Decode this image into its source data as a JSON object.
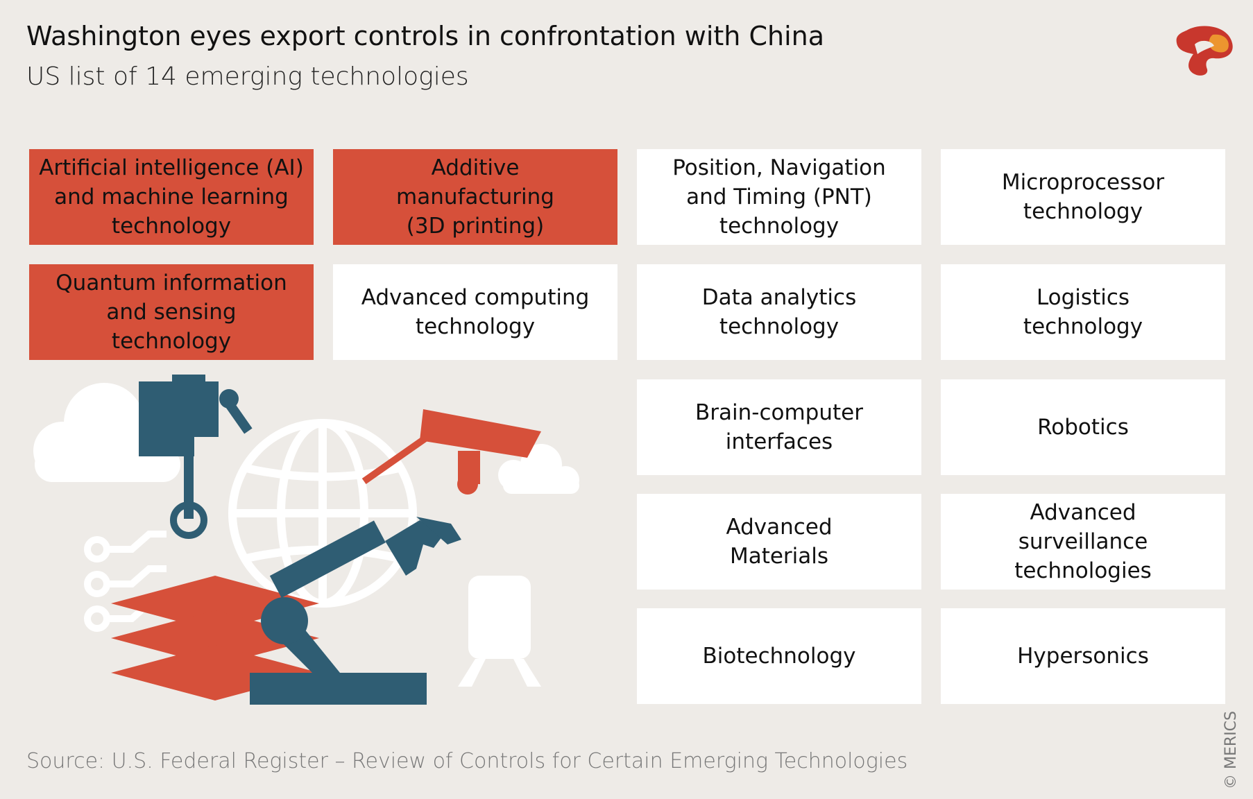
{
  "header": {
    "title": "Washington eyes export controls in confrontation with China",
    "subtitle": "US list of 14 emerging technologies"
  },
  "tiles": [
    {
      "label": "Artificial intelligence (AI)\nand machine learning\ntechnology",
      "highlight": true
    },
    {
      "label": "Additive\nmanufacturing\n(3D printing)",
      "highlight": true
    },
    {
      "label": "Position, Navigation\nand Timing (PNT)\ntechnology",
      "highlight": false
    },
    {
      "label": "Microprocessor\ntechnology",
      "highlight": false
    },
    {
      "label": "Quantum information\nand sensing\ntechnology",
      "highlight": true
    },
    {
      "label": "Advanced computing\ntechnology",
      "highlight": false
    },
    {
      "label": "Data analytics\ntechnology",
      "highlight": false
    },
    {
      "label": "Logistics\ntechnology",
      "highlight": false
    },
    {
      "label": "Brain-computer\ninterfaces",
      "highlight": false
    },
    {
      "label": "Robotics",
      "highlight": false
    },
    {
      "label": "Advanced\nMaterials",
      "highlight": false
    },
    {
      "label": "Advanced\nsurveillance\ntechnologies",
      "highlight": false
    },
    {
      "label": "Biotechnology",
      "highlight": false
    },
    {
      "label": "Hypersonics",
      "highlight": false
    }
  ],
  "footer": {
    "source": "Source: U.S. Federal Register – Review of Controls for Certain Emerging Technologies",
    "copyright": "© MERICS"
  },
  "colors": {
    "background": "#eeebe7",
    "highlight": "#d6503a",
    "tile": "#ffffff",
    "robot_blue": "#2f5d73",
    "logo_red": "#c8372d",
    "logo_orange": "#f0a030"
  }
}
